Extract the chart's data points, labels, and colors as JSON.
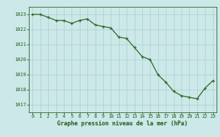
{
  "x": [
    0,
    1,
    2,
    3,
    4,
    5,
    6,
    7,
    8,
    9,
    10,
    11,
    12,
    13,
    14,
    15,
    16,
    17,
    18,
    19,
    20,
    21,
    22,
    23
  ],
  "y": [
    1023.0,
    1023.0,
    1022.8,
    1022.6,
    1022.6,
    1022.4,
    1022.6,
    1022.7,
    1022.3,
    1022.2,
    1022.1,
    1021.5,
    1021.4,
    1020.8,
    1020.2,
    1020.0,
    1019.0,
    1018.5,
    1017.9,
    1017.6,
    1017.5,
    1017.4,
    1018.1,
    1018.6
  ],
  "line_color": "#2d6e2d",
  "marker_color": "#2d6e2d",
  "bg_color": "#cce8e8",
  "grid_color": "#aacccc",
  "text_color": "#1a5c1a",
  "xlabel": "Graphe pression niveau de la mer (hPa)",
  "xlim": [
    -0.5,
    23.5
  ],
  "ylim": [
    1016.5,
    1023.5
  ],
  "yticks": [
    1017,
    1018,
    1019,
    1020,
    1021,
    1022,
    1023
  ],
  "xticks": [
    0,
    1,
    2,
    3,
    4,
    5,
    6,
    7,
    8,
    9,
    10,
    11,
    12,
    13,
    14,
    15,
    16,
    17,
    18,
    19,
    20,
    21,
    22,
    23
  ],
  "marker_size": 3.5,
  "line_width": 1.0
}
